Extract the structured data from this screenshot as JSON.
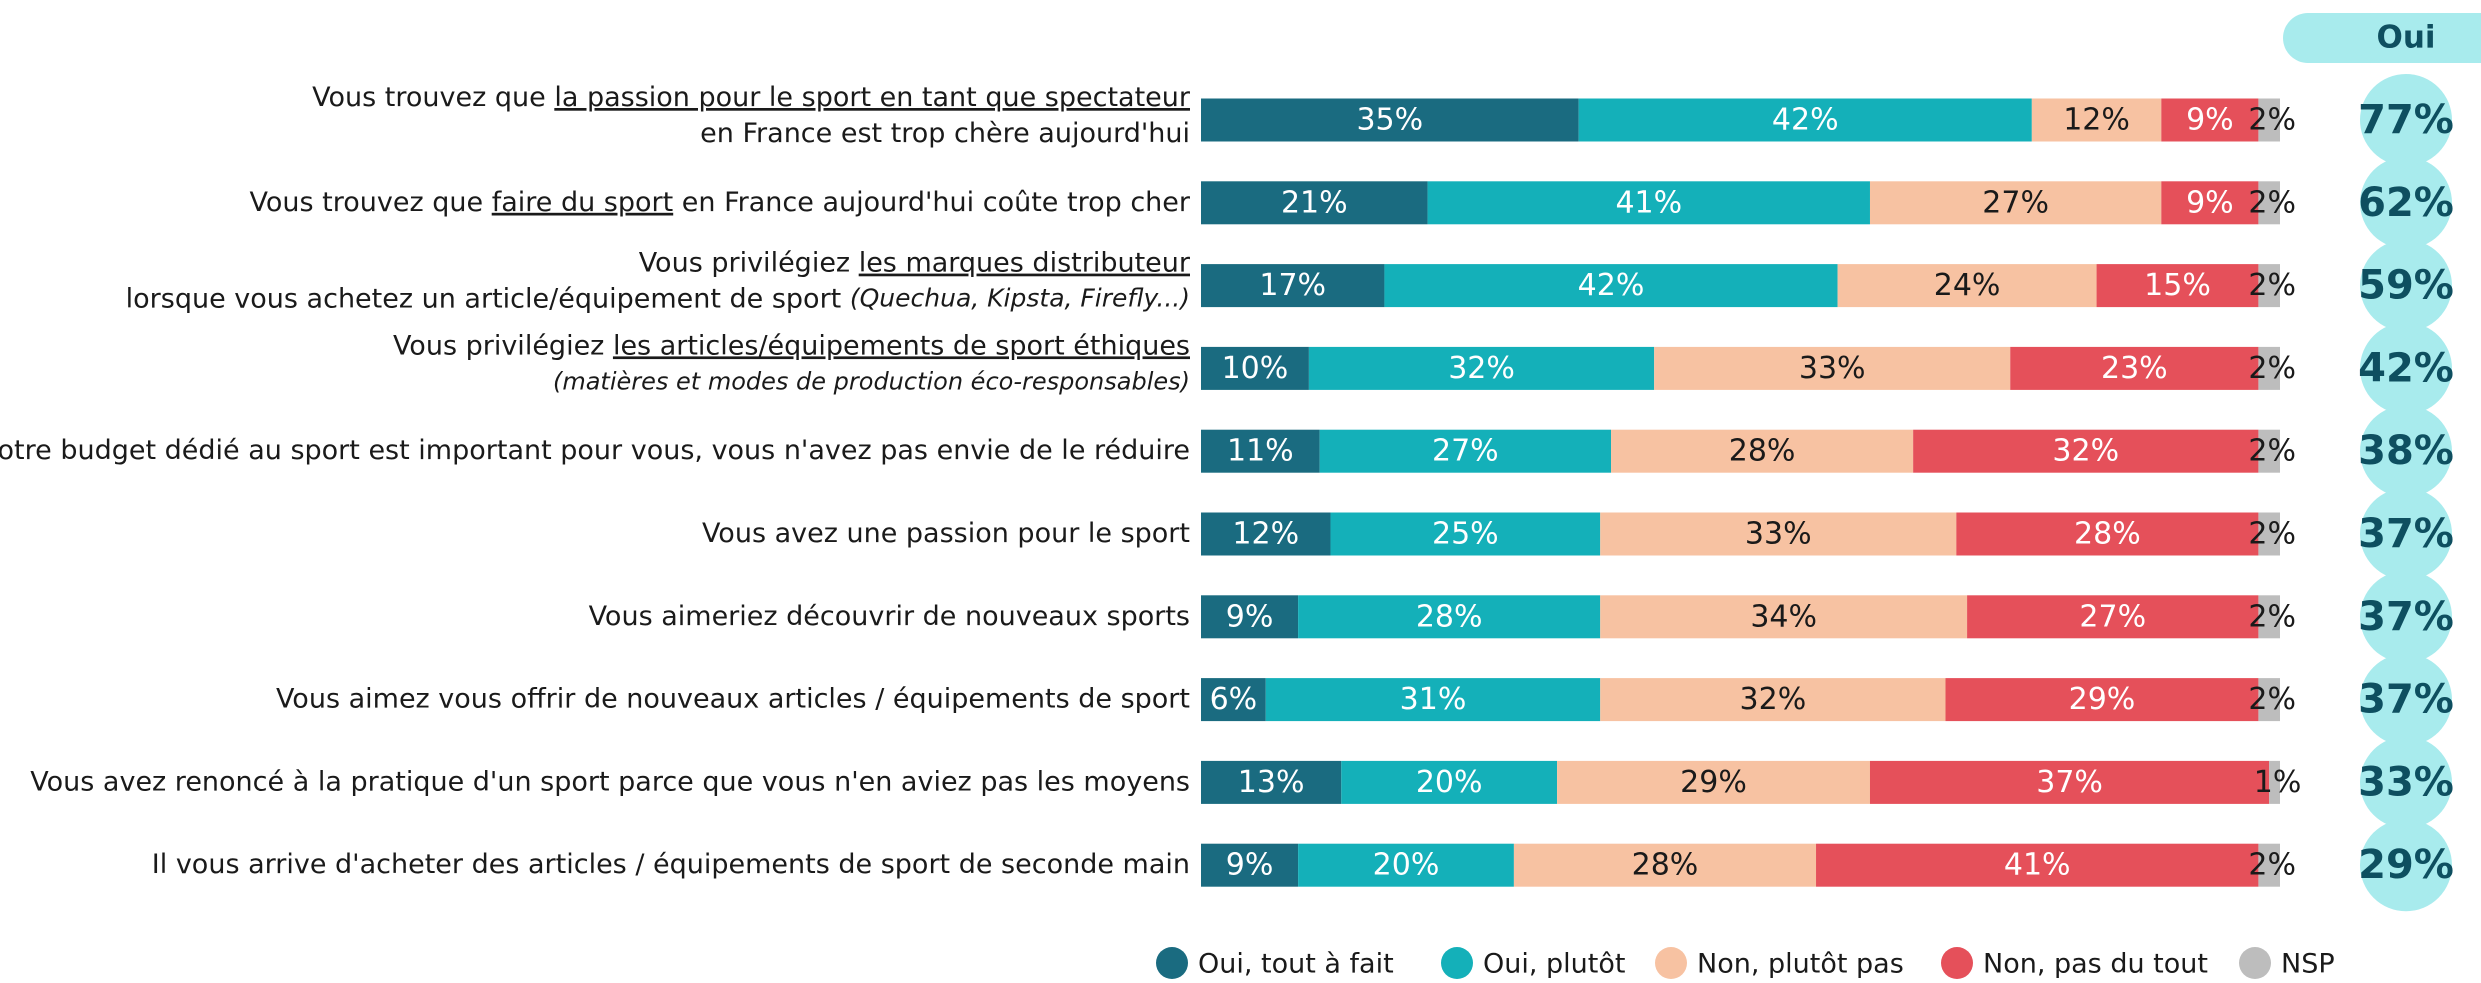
{
  "chart_data": {
    "type": "stacked_bar_horizontal",
    "xlim": [
      0,
      100
    ],
    "categories": [
      [
        [
          {
            "text": "Vous trouvez que "
          },
          {
            "text": "la passion pour le sport en tant que spectateur",
            "style": "underline"
          }
        ],
        [
          {
            "text": "en France est trop chère aujourd'hui"
          }
        ]
      ],
      [
        [
          {
            "text": "Vous trouvez que "
          },
          {
            "text": "faire du sport",
            "style": "underline"
          },
          {
            "text": " en France aujourd'hui coûte trop cher"
          }
        ]
      ],
      [
        [
          {
            "text": "Vous privilégiez "
          },
          {
            "text": "les marques distributeur",
            "style": "underline"
          }
        ],
        [
          {
            "text": "lorsque vous achetez un article/équipement de sport "
          },
          {
            "text": "(Quechua, Kipsta, Firefly...)",
            "style": "italic"
          }
        ]
      ],
      [
        [
          {
            "text": "Vous privilégiez "
          },
          {
            "text": "les articles/équipements de sport éthiques",
            "style": "underline"
          }
        ],
        [
          {
            "text": "(matières et modes de production éco-responsables)",
            "style": "italic"
          }
        ]
      ],
      [
        [
          {
            "text": "Votre budget dédié au sport est important pour vous, vous n'avez pas envie de le réduire"
          }
        ]
      ],
      [
        [
          {
            "text": "Vous avez une passion pour le sport"
          }
        ]
      ],
      [
        [
          {
            "text": "Vous aimeriez découvrir de nouveaux sports"
          }
        ]
      ],
      [
        [
          {
            "text": "Vous aimez vous offrir de nouveaux articles / équipements de sport"
          }
        ]
      ],
      [
        [
          {
            "text": "Vous avez renoncé à la pratique d'un sport parce que vous n'en aviez pas les moyens"
          }
        ]
      ],
      [
        [
          {
            "text": "Il vous arrive d'acheter des articles / équipements de sport de seconde main"
          }
        ]
      ]
    ],
    "series": [
      {
        "name": "Oui, tout à fait",
        "color": "#1a6b80",
        "label_color": "#ffffff",
        "values": [
          35,
          21,
          17,
          10,
          11,
          12,
          9,
          6,
          13,
          9
        ],
        "value_labels": [
          "35%",
          "21%",
          "17%",
          "10%",
          "11%",
          "12%",
          "9%",
          "6%",
          "13%",
          "9%"
        ]
      },
      {
        "name": "Oui, plutôt",
        "color": "#14b0b9",
        "label_color": "#ffffff",
        "values": [
          42,
          41,
          42,
          32,
          27,
          25,
          28,
          31,
          20,
          20
        ],
        "value_labels": [
          "42%",
          "41%",
          "42%",
          "32%",
          "27%",
          "25%",
          "28%",
          "31%",
          "20%",
          "20%"
        ]
      },
      {
        "name": "Non, plutôt pas",
        "color": "#f7c2a2",
        "label_color": "#1a1a1a",
        "values": [
          12,
          27,
          24,
          33,
          28,
          33,
          34,
          32,
          29,
          28
        ],
        "value_labels": [
          "12%",
          "27%",
          "24%",
          "33%",
          "28%",
          "33%",
          "34%",
          "32%",
          "29%",
          "28%"
        ]
      },
      {
        "name": "Non, pas du tout",
        "color": "#e5505a",
        "label_color": "#ffffff",
        "values": [
          9,
          9,
          15,
          23,
          32,
          28,
          27,
          29,
          37,
          41
        ],
        "value_labels": [
          "9%",
          "9%",
          "15%",
          "23%",
          "32%",
          "28%",
          "27%",
          "29%",
          "37%",
          "41%"
        ]
      },
      {
        "name": "NSP",
        "color": "#bdbdbd",
        "label_color": "#1a1a1a",
        "values": [
          2,
          2,
          2,
          2,
          2,
          2,
          2,
          2,
          1,
          2
        ],
        "value_labels": [
          "2%",
          "2%",
          "2%",
          "2%",
          "2%",
          "2%",
          "2%",
          "2%",
          "1%",
          "2%"
        ]
      }
    ],
    "oui": {
      "title": "Oui",
      "color": "#a8ebed",
      "text_color": "#0e4f60",
      "values": [
        77,
        62,
        59,
        42,
        38,
        37,
        37,
        37,
        33,
        29
      ],
      "value_labels": [
        "77%",
        "62%",
        "59%",
        "42%",
        "38%",
        "37%",
        "37%",
        "37%",
        "33%",
        "29%"
      ]
    }
  }
}
